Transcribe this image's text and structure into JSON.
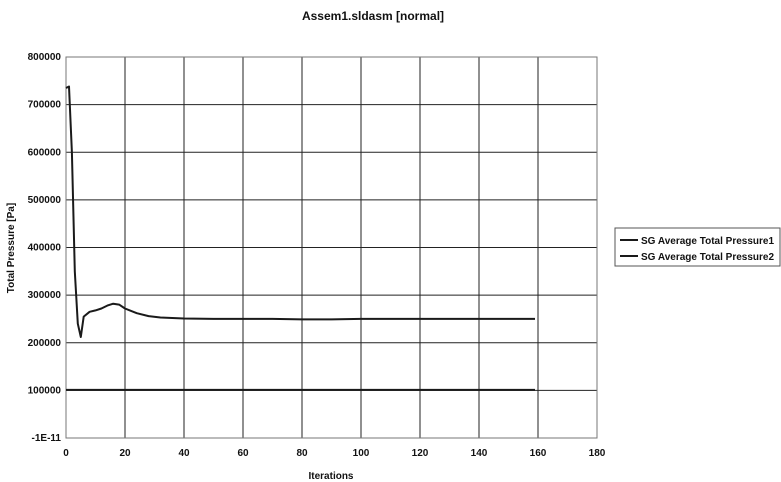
{
  "chart_data": {
    "type": "line",
    "title": "Assem1.sldasm [normal]",
    "xlabel": "Iterations",
    "ylabel": "Total Pressure [Pa]",
    "xlim": [
      0,
      180
    ],
    "ylim": [
      0,
      800000
    ],
    "x_ticks": [
      "0",
      "20",
      "40",
      "60",
      "80",
      "100",
      "120",
      "140",
      "160",
      "180"
    ],
    "y_ticks": [
      "-1E-11",
      "100000",
      "200000",
      "300000",
      "400000",
      "500000",
      "600000",
      "700000",
      "800000"
    ],
    "grid": true,
    "legend_position": "right",
    "series": [
      {
        "name": "SG Average Total Pressure1",
        "color": "#1a1a1a",
        "x": [
          0,
          1,
          2,
          3,
          4,
          5,
          6,
          8,
          10,
          12,
          14,
          16,
          18,
          20,
          24,
          28,
          32,
          40,
          50,
          60,
          70,
          80,
          90,
          100,
          110,
          120,
          130,
          140,
          150,
          159
        ],
        "y": [
          735000,
          738000,
          600000,
          350000,
          240000,
          212000,
          255000,
          265000,
          268000,
          272000,
          278000,
          282000,
          280000,
          272000,
          262000,
          256000,
          253000,
          251000,
          250000,
          250000,
          250000,
          249000,
          249000,
          250000,
          250000,
          250000,
          250000,
          250000,
          250000,
          250000
        ]
      },
      {
        "name": "SG Average Total Pressure2",
        "color": "#1a1a1a",
        "x": [
          0,
          20,
          40,
          60,
          80,
          100,
          120,
          140,
          159
        ],
        "y": [
          101000,
          101000,
          101000,
          101000,
          101000,
          101000,
          101000,
          101000,
          101000
        ]
      }
    ]
  }
}
